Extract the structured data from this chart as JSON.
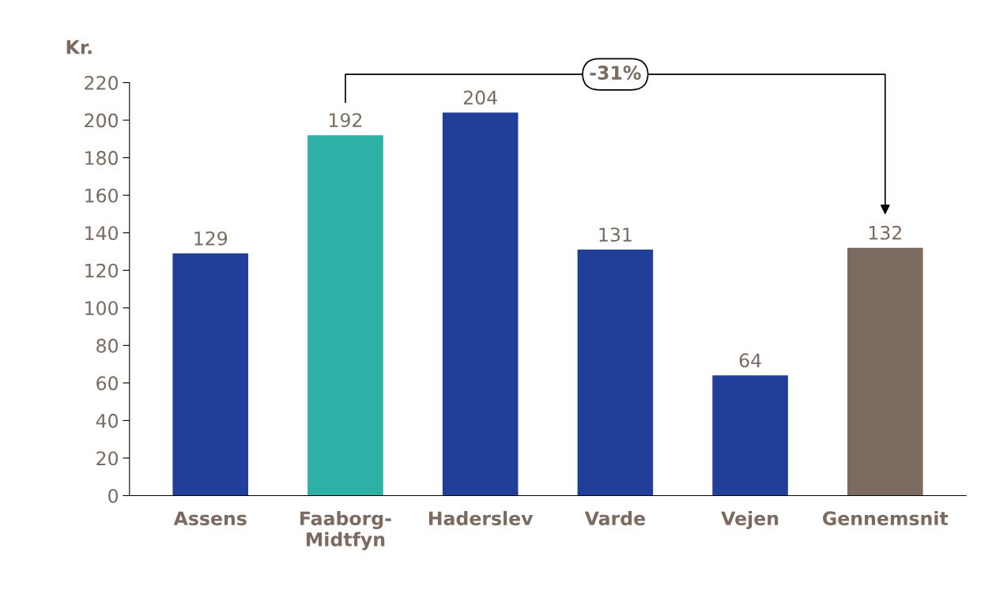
{
  "chart_data": {
    "type": "bar",
    "ylabel": "Kr.",
    "categories": [
      "Assens",
      "Faaborg-\nMidtfyn",
      "Haderslev",
      "Varde",
      "Vejen",
      "Gennemsnit"
    ],
    "values": [
      129,
      192,
      204,
      131,
      64,
      132
    ],
    "colors": [
      "#213f99",
      "#2db0a6",
      "#213f99",
      "#213f99",
      "#213f99",
      "#7a6a60"
    ],
    "ylim": [
      0,
      220
    ],
    "yticks": [
      0,
      20,
      40,
      60,
      80,
      100,
      120,
      140,
      160,
      180,
      200,
      220
    ],
    "data_labels": true,
    "grid": false,
    "legend": false,
    "annotations": [
      "-31%"
    ]
  }
}
